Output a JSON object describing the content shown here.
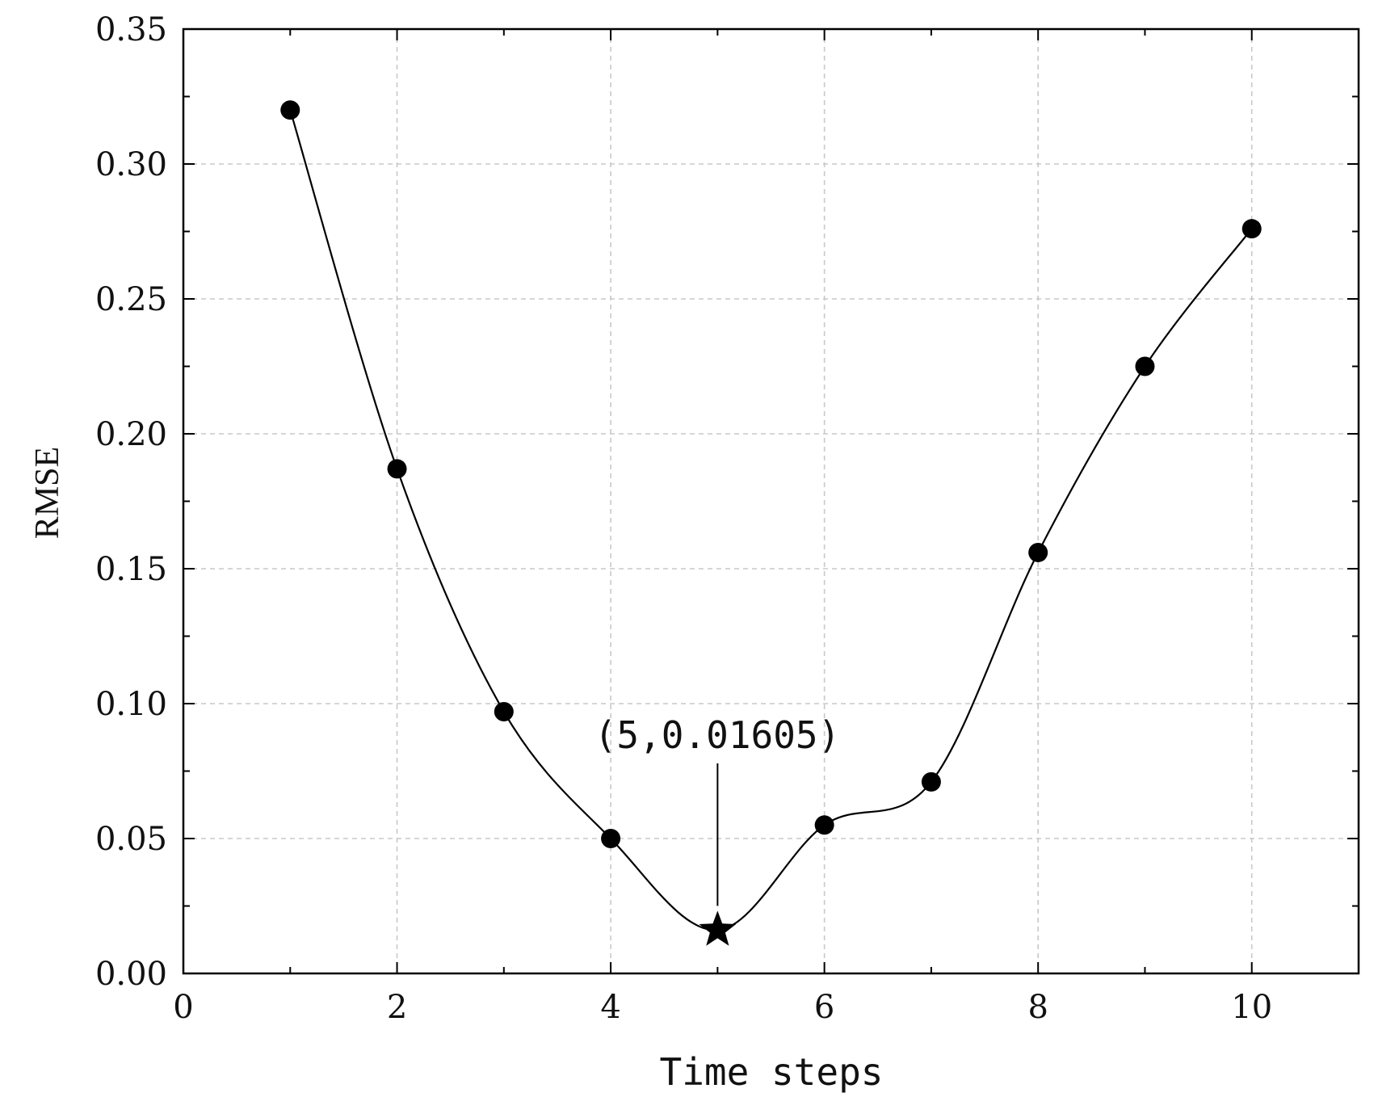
{
  "chart_data": {
    "type": "line",
    "title": "",
    "xlabel": "Time steps",
    "ylabel": "RMSE",
    "xlim": [
      0,
      11
    ],
    "ylim": [
      0,
      0.35
    ],
    "x_ticks": [
      0,
      2,
      4,
      6,
      8,
      10
    ],
    "x_tick_labels": [
      "0",
      "2",
      "4",
      "6",
      "8",
      "10"
    ],
    "y_ticks": [
      0,
      0.05,
      0.1,
      0.15,
      0.2,
      0.25,
      0.3,
      0.35
    ],
    "y_tick_labels": [
      "0.00",
      "0.05",
      "0.10",
      "0.15",
      "0.20",
      "0.25",
      "0.30",
      "0.35"
    ],
    "grid": true,
    "series": [
      {
        "x": [
          1,
          2,
          3,
          4,
          5,
          6,
          7,
          8,
          9,
          10
        ],
        "y": [
          0.32,
          0.187,
          0.097,
          0.05,
          0.01605,
          0.055,
          0.071,
          0.156,
          0.225,
          0.276
        ],
        "color": "#000000",
        "marker": "circle"
      }
    ],
    "highlight": {
      "x": 5,
      "y": 0.01605,
      "marker": "star"
    },
    "annotation": {
      "text": "(5,0.01605)",
      "x": 5,
      "y": 0.01605
    }
  }
}
